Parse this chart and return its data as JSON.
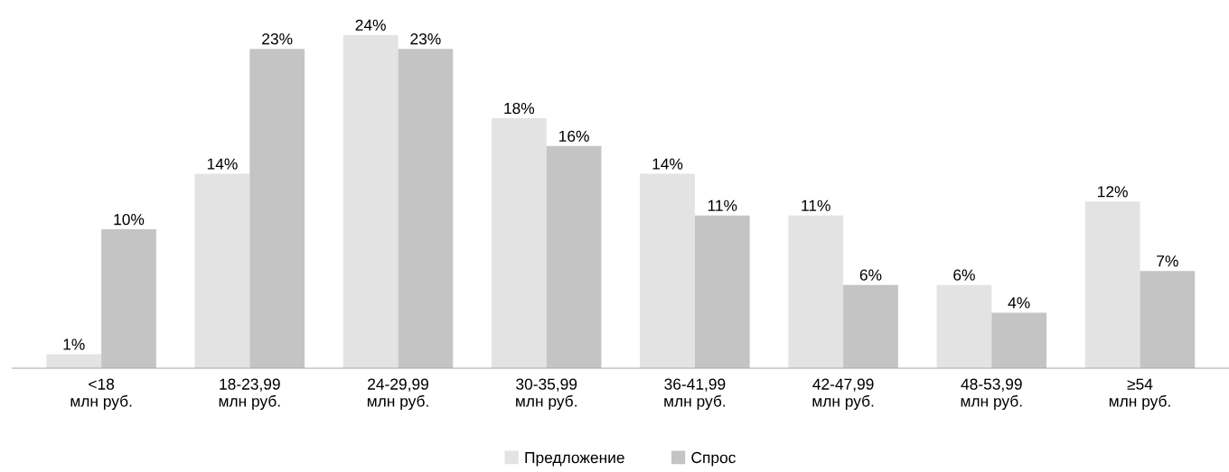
{
  "chart_data": {
    "type": "bar",
    "categories": [
      "<18\nмлн руб.",
      "18-23,99\nмлн руб.",
      "24-29,99\nмлн руб.",
      "30-35,99\nмлн руб.",
      "36-41,99\nмлн руб.",
      "42-47,99\nмлн руб.",
      "48-53,99\nмлн руб.",
      "≥54\nмлн руб."
    ],
    "series": [
      {
        "name": "Предложение",
        "color": "#e3e3e3",
        "values": [
          1,
          14,
          24,
          18,
          14,
          11,
          6,
          12
        ],
        "value_labels": [
          "1%",
          "14%",
          "24%",
          "18%",
          "14%",
          "11%",
          "6%",
          "12%"
        ]
      },
      {
        "name": "Спрос",
        "color": "#c4c4c4",
        "values": [
          10,
          23,
          23,
          16,
          11,
          6,
          4,
          7
        ],
        "value_labels": [
          "10%",
          "23%",
          "23%",
          "16%",
          "11%",
          "6%",
          "4%",
          "7%"
        ]
      }
    ],
    "legend": "bottom",
    "grid": false
  }
}
